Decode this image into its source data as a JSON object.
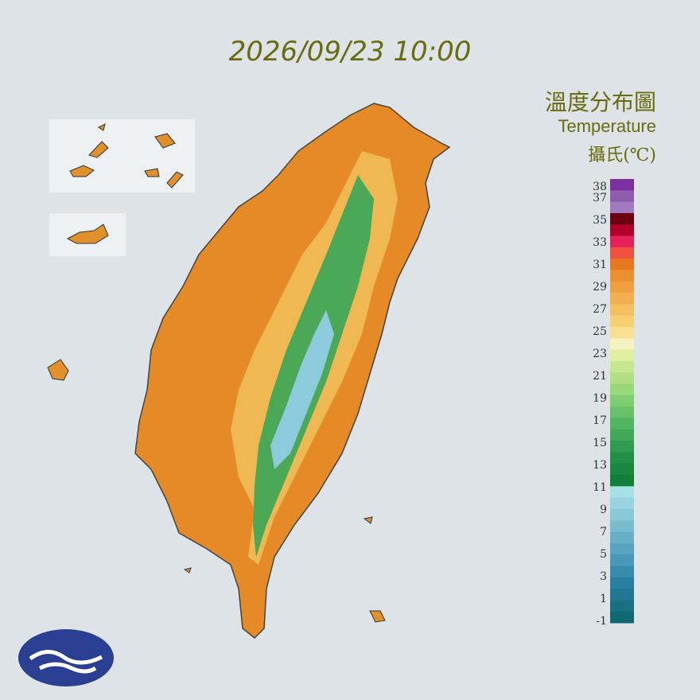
{
  "header": {
    "timestamp": "2026/09/23 10:00"
  },
  "legend": {
    "title": "溫度分布圖",
    "subtitle": "Temperature",
    "unit": "攝氏(℃)",
    "ticks": [
      38,
      37,
      35,
      33,
      31,
      29,
      27,
      25,
      23,
      21,
      19,
      17,
      15,
      13,
      11,
      9,
      7,
      5,
      3,
      1,
      -1
    ],
    "colors": [
      "#7b2fa0",
      "#8e5db0",
      "#a07bc0",
      "#6b0010",
      "#b0002a",
      "#e8205a",
      "#f05040",
      "#e87820",
      "#ec9030",
      "#f0a040",
      "#f2b050",
      "#f4c060",
      "#f6d070",
      "#f8e090",
      "#f4f4c0",
      "#e0f0a0",
      "#c8e890",
      "#b0e080",
      "#98d878",
      "#80cc70",
      "#68c068",
      "#50b460",
      "#40a858",
      "#309c50",
      "#229048",
      "#188840",
      "#108038",
      "#a8e0e8",
      "#98d4e0",
      "#88c8d8",
      "#78bcd0",
      "#68b0c8",
      "#58a4c0",
      "#4898b8",
      "#388cb0",
      "#2880a0",
      "#207890",
      "#187080",
      "#106870"
    ]
  }
}
